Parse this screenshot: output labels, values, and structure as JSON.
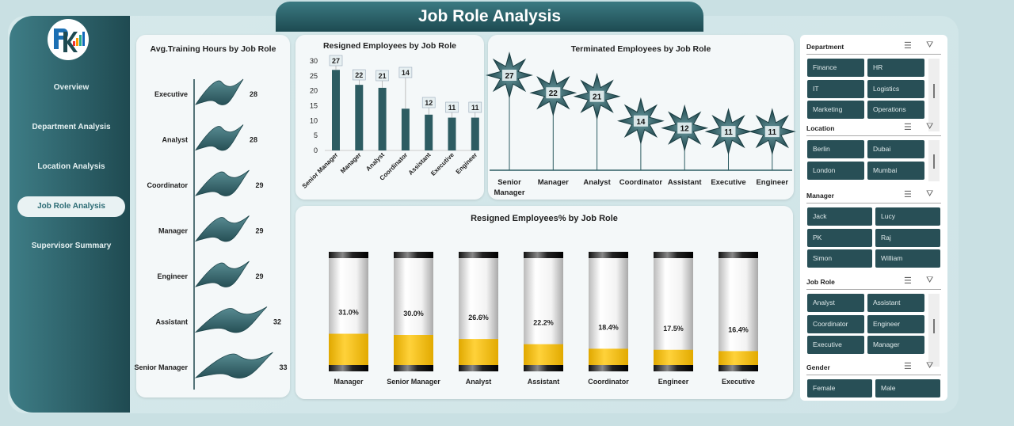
{
  "title": "Job Role Analysis",
  "nav": [
    {
      "label": "Overview"
    },
    {
      "label": "Department Analysis"
    },
    {
      "label": "Location Analysis"
    },
    {
      "label": "Job Role Analysis",
      "active": true
    },
    {
      "label": "Supervisor Summary"
    }
  ],
  "colors": {
    "teal": "#2d5c62",
    "yellow": "#f5c518",
    "sidebar": "#2b6b74"
  },
  "chart_data": [
    {
      "type": "bar",
      "orientation": "horizontal",
      "title": "Avg.Training Hours by Job Role",
      "categories": [
        "Executive",
        "Analyst",
        "Coordinator",
        "Manager",
        "Engineer",
        "Assistant",
        "Senior Manager"
      ],
      "values": [
        28,
        28,
        29,
        29,
        29,
        32,
        33
      ]
    },
    {
      "type": "bar",
      "title": "Resigned Employees by Job Role",
      "categories": [
        "Senior Manager",
        "Manager",
        "Analyst",
        "Coordinator",
        "Assistant",
        "Executive",
        "Engineer"
      ],
      "values": [
        27,
        22,
        21,
        14,
        12,
        11,
        11
      ],
      "ylim": [
        0,
        30
      ],
      "yticks": [
        "0",
        "5",
        "10",
        "15",
        "20",
        "25",
        "30"
      ]
    },
    {
      "type": "bar",
      "title": "Terminated Employees by Job Role",
      "categories": [
        "Senior Manager",
        "Manager",
        "Analyst",
        "Coordinator",
        "Assistant",
        "Executive",
        "Engineer"
      ],
      "values": [
        27,
        22,
        21,
        14,
        12,
        11,
        11
      ]
    },
    {
      "type": "bar",
      "title": "Resigned Employees% by Job Role",
      "categories": [
        "Manager",
        "Senior Manager",
        "Analyst",
        "Assistant",
        "Coordinator",
        "Engineer",
        "Executive"
      ],
      "values": [
        31.0,
        30.0,
        26.6,
        22.2,
        18.4,
        17.5,
        16.4
      ],
      "labels": [
        "31.0%",
        "30.0%",
        "26.6%",
        "22.2%",
        "18.4%",
        "17.5%",
        "16.4%"
      ],
      "ylim": [
        0,
        100
      ]
    }
  ],
  "slicers": [
    {
      "title": "Department",
      "items": [
        "Finance",
        "HR",
        "IT",
        "Logistics",
        "Marketing",
        "Operations"
      ]
    },
    {
      "title": "Location",
      "items": [
        "Berlin",
        "Dubai",
        "London",
        "Mumbai"
      ]
    },
    {
      "title": "Manager",
      "items": [
        "Jack",
        "Lucy",
        "PK",
        "Raj",
        "Simon",
        "William"
      ]
    },
    {
      "title": "Job Role",
      "items": [
        "Analyst",
        "Assistant",
        "Coordinator",
        "Engineer",
        "Executive",
        "Manager"
      ]
    },
    {
      "title": "Gender",
      "items": [
        "Female",
        "Male"
      ]
    }
  ]
}
